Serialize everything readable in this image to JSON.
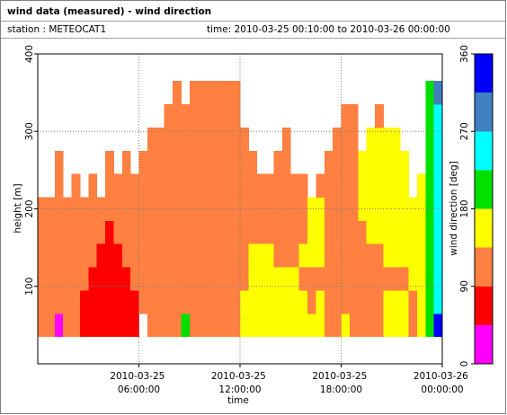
{
  "header": {
    "title": "wind data (measured) - wind direction",
    "station": "station : METEOCAT1",
    "time": "time: 2010-03-25 00:10:00 to 2010-03-26 00:00:00"
  },
  "chart_data": {
    "type": "heatmap",
    "xlabel": "time",
    "ylabel": "height [m]",
    "xlim": [
      0,
      24
    ],
    "ylim": [
      0,
      400
    ],
    "xticks": [
      {
        "value": 6,
        "label": "2010-03-25 06:00:00"
      },
      {
        "value": 12,
        "label": "2010-03-25 12:00:00"
      },
      {
        "value": 18,
        "label": "2010-03-25 18:00:00"
      },
      {
        "value": 24,
        "label": "2010-03-26 00:00:00"
      }
    ],
    "yticks": [
      100,
      200,
      300,
      400
    ],
    "grid": true,
    "x_bins": [
      0,
      0.5,
      1,
      1.5,
      2,
      2.5,
      3,
      3.5,
      4,
      4.5,
      5,
      5.5,
      6,
      6.5,
      7,
      7.5,
      8,
      8.5,
      9,
      9.5,
      10,
      10.5,
      11,
      11.5,
      12,
      12.5,
      13,
      13.5,
      14,
      14.5,
      15,
      15.5,
      16,
      16.5,
      17,
      17.5,
      18,
      18.5,
      19,
      19.5,
      20,
      20.5,
      21,
      21.5,
      22,
      22.5,
      23,
      23.5,
      24
    ],
    "y_bins": [
      35,
      65,
      95,
      125,
      155,
      185,
      215,
      245,
      275,
      305,
      335,
      365
    ],
    "z": [
      [
        110,
        110,
        20,
        110,
        110,
        70,
        70,
        70,
        70,
        70,
        70,
        70,
        null,
        110,
        110,
        110,
        110,
        200,
        110,
        110,
        110,
        110,
        110,
        110,
        160,
        160,
        160,
        160,
        160,
        160,
        160,
        160,
        160,
        160,
        110,
        110,
        160,
        110,
        110,
        110,
        110,
        160,
        160,
        160,
        110,
        160,
        200,
        340
      ],
      [
        110,
        110,
        110,
        110,
        110,
        70,
        70,
        70,
        70,
        70,
        70,
        70,
        110,
        110,
        110,
        110,
        110,
        110,
        110,
        110,
        110,
        110,
        110,
        110,
        160,
        160,
        160,
        160,
        160,
        160,
        160,
        160,
        110,
        160,
        110,
        110,
        110,
        110,
        110,
        110,
        110,
        160,
        160,
        160,
        110,
        160,
        200,
        250
      ],
      [
        110,
        110,
        110,
        110,
        110,
        110,
        70,
        70,
        70,
        70,
        70,
        110,
        110,
        110,
        110,
        110,
        110,
        110,
        110,
        110,
        110,
        110,
        110,
        110,
        110,
        160,
        160,
        160,
        160,
        160,
        160,
        110,
        110,
        110,
        110,
        110,
        110,
        110,
        110,
        110,
        110,
        110,
        110,
        110,
        160,
        160,
        200,
        250
      ],
      [
        110,
        110,
        110,
        110,
        110,
        110,
        110,
        70,
        70,
        70,
        110,
        110,
        110,
        110,
        110,
        110,
        110,
        110,
        110,
        110,
        110,
        110,
        110,
        110,
        110,
        160,
        160,
        160,
        110,
        110,
        110,
        160,
        160,
        160,
        110,
        110,
        110,
        110,
        110,
        110,
        110,
        160,
        160,
        160,
        160,
        160,
        200,
        250
      ],
      [
        110,
        110,
        110,
        110,
        110,
        110,
        110,
        110,
        70,
        110,
        110,
        110,
        110,
        110,
        110,
        110,
        110,
        110,
        110,
        110,
        110,
        110,
        110,
        110,
        110,
        110,
        110,
        110,
        110,
        110,
        110,
        110,
        160,
        160,
        110,
        110,
        110,
        110,
        110,
        160,
        160,
        160,
        160,
        160,
        160,
        160,
        200,
        250
      ],
      [
        110,
        110,
        110,
        110,
        110,
        110,
        110,
        110,
        110,
        110,
        110,
        110,
        110,
        110,
        110,
        110,
        110,
        110,
        110,
        110,
        110,
        110,
        110,
        110,
        110,
        110,
        110,
        110,
        110,
        110,
        110,
        110,
        160,
        160,
        110,
        110,
        110,
        110,
        160,
        160,
        160,
        160,
        160,
        160,
        160,
        160,
        200,
        250
      ],
      [
        null,
        null,
        110,
        null,
        110,
        null,
        110,
        null,
        110,
        110,
        110,
        110,
        110,
        110,
        110,
        110,
        110,
        110,
        110,
        110,
        110,
        110,
        110,
        110,
        110,
        110,
        110,
        110,
        110,
        110,
        110,
        110,
        null,
        110,
        110,
        110,
        110,
        110,
        160,
        160,
        160,
        160,
        160,
        160,
        null,
        160,
        200,
        250
      ],
      [
        null,
        null,
        110,
        null,
        null,
        null,
        null,
        null,
        110,
        null,
        110,
        null,
        110,
        110,
        110,
        110,
        110,
        110,
        110,
        110,
        110,
        110,
        110,
        110,
        110,
        110,
        null,
        null,
        110,
        110,
        null,
        null,
        null,
        null,
        110,
        110,
        110,
        110,
        160,
        160,
        160,
        160,
        160,
        160,
        null,
        null,
        200,
        250
      ],
      [
        null,
        null,
        null,
        null,
        null,
        null,
        null,
        null,
        null,
        null,
        null,
        null,
        null,
        110,
        110,
        110,
        110,
        110,
        110,
        110,
        110,
        110,
        110,
        110,
        110,
        null,
        null,
        null,
        null,
        110,
        null,
        null,
        null,
        null,
        null,
        110,
        110,
        110,
        null,
        160,
        160,
        160,
        160,
        null,
        null,
        null,
        200,
        250
      ],
      [
        null,
        null,
        null,
        null,
        null,
        null,
        null,
        null,
        null,
        null,
        null,
        null,
        null,
        null,
        null,
        110,
        110,
        110,
        110,
        110,
        110,
        110,
        110,
        110,
        null,
        null,
        null,
        null,
        null,
        null,
        null,
        null,
        null,
        null,
        null,
        null,
        110,
        110,
        null,
        null,
        110,
        null,
        null,
        null,
        null,
        null,
        200,
        250
      ],
      [
        null,
        null,
        null,
        null,
        null,
        null,
        null,
        null,
        null,
        null,
        null,
        null,
        null,
        null,
        null,
        null,
        110,
        null,
        110,
        110,
        110,
        110,
        110,
        110,
        null,
        null,
        null,
        null,
        null,
        null,
        null,
        null,
        null,
        null,
        null,
        null,
        null,
        null,
        null,
        null,
        null,
        null,
        null,
        null,
        null,
        null,
        200,
        290
      ]
    ],
    "colorbar": {
      "label": "wind direction [deg]",
      "bounds": [
        0,
        45,
        90,
        135,
        180,
        225,
        270,
        315,
        360
      ],
      "colors": [
        "#ff00ff",
        "#ff0000",
        "#ff8040",
        "#ffff00",
        "#00e000",
        "#00ffff",
        "#4080c0",
        "#0000ff"
      ],
      "ticks": [
        0,
        90,
        180,
        270,
        360
      ]
    }
  }
}
